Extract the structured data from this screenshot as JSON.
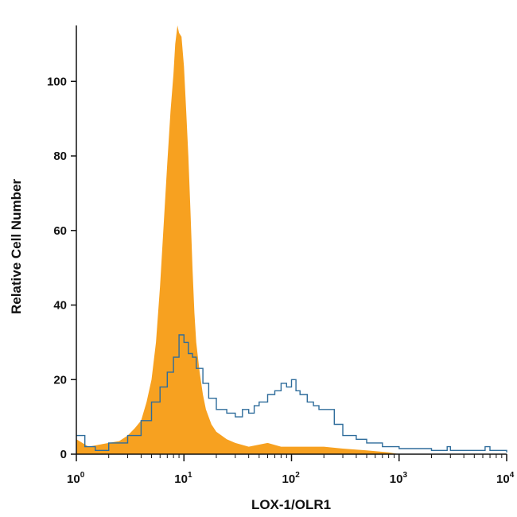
{
  "chart_data": {
    "type": "area",
    "title": "",
    "xlabel": "LOX-1/OLR1",
    "ylabel": "Relative Cell Number",
    "x_scale": "log",
    "xlim": [
      1,
      10000
    ],
    "ylim": [
      0,
      115
    ],
    "x_ticks": [
      {
        "base": "10",
        "exp": "0",
        "value": 1
      },
      {
        "base": "10",
        "exp": "1",
        "value": 10
      },
      {
        "base": "10",
        "exp": "2",
        "value": 100
      },
      {
        "base": "10",
        "exp": "3",
        "value": 1000
      },
      {
        "base": "10",
        "exp": "4",
        "value": 10000
      }
    ],
    "y_ticks": [
      "0",
      "20",
      "40",
      "60",
      "80",
      "100"
    ],
    "grid": false,
    "series": [
      {
        "color": "#F7A120",
        "style": "filled",
        "points": [
          [
            1,
            4
          ],
          [
            1.3,
            2
          ],
          [
            1.6,
            2.5
          ],
          [
            2,
            3
          ],
          [
            2.5,
            3.5
          ],
          [
            3,
            5
          ],
          [
            3.5,
            7
          ],
          [
            4,
            9
          ],
          [
            4.5,
            14
          ],
          [
            5,
            20
          ],
          [
            5.5,
            30
          ],
          [
            6,
            45
          ],
          [
            6.5,
            62
          ],
          [
            7,
            78
          ],
          [
            7.5,
            92
          ],
          [
            8,
            102
          ],
          [
            8.3,
            110
          ],
          [
            8.7,
            115
          ],
          [
            9,
            113
          ],
          [
            9.5,
            112
          ],
          [
            10,
            104
          ],
          [
            10.5,
            92
          ],
          [
            11,
            80
          ],
          [
            11.5,
            65
          ],
          [
            12,
            50
          ],
          [
            12.5,
            38
          ],
          [
            13,
            30
          ],
          [
            14,
            22
          ],
          [
            15,
            16
          ],
          [
            16,
            12
          ],
          [
            18,
            8
          ],
          [
            20,
            6
          ],
          [
            25,
            4
          ],
          [
            30,
            3
          ],
          [
            40,
            2
          ],
          [
            60,
            3
          ],
          [
            80,
            2
          ],
          [
            100,
            2
          ],
          [
            150,
            2
          ],
          [
            200,
            2
          ],
          [
            300,
            1.5
          ],
          [
            500,
            1
          ],
          [
            800,
            0.5
          ],
          [
            1000,
            0
          ]
        ]
      },
      {
        "color": "#2E6C9B",
        "style": "line",
        "points": [
          [
            1,
            5
          ],
          [
            1.2,
            2
          ],
          [
            1.5,
            1
          ],
          [
            2,
            3
          ],
          [
            3,
            5
          ],
          [
            4,
            9
          ],
          [
            5,
            14
          ],
          [
            6,
            18
          ],
          [
            7,
            22
          ],
          [
            8,
            26
          ],
          [
            9,
            32
          ],
          [
            10,
            30
          ],
          [
            11,
            27
          ],
          [
            12,
            26
          ],
          [
            13,
            23
          ],
          [
            15,
            19
          ],
          [
            17,
            15
          ],
          [
            20,
            12
          ],
          [
            25,
            11
          ],
          [
            30,
            10
          ],
          [
            35,
            12
          ],
          [
            40,
            11
          ],
          [
            45,
            13
          ],
          [
            50,
            14
          ],
          [
            60,
            16
          ],
          [
            70,
            17
          ],
          [
            80,
            19
          ],
          [
            90,
            18
          ],
          [
            100,
            20
          ],
          [
            110,
            17
          ],
          [
            120,
            16
          ],
          [
            140,
            14
          ],
          [
            160,
            13
          ],
          [
            180,
            12
          ],
          [
            200,
            12
          ],
          [
            220,
            12
          ],
          [
            250,
            8
          ],
          [
            300,
            5
          ],
          [
            400,
            4
          ],
          [
            500,
            3
          ],
          [
            700,
            2
          ],
          [
            1000,
            1.5
          ],
          [
            2000,
            1
          ],
          [
            2800,
            2
          ],
          [
            3000,
            1
          ],
          [
            5000,
            1
          ],
          [
            6300,
            2
          ],
          [
            7000,
            1
          ],
          [
            10000,
            0.5
          ]
        ]
      }
    ]
  }
}
